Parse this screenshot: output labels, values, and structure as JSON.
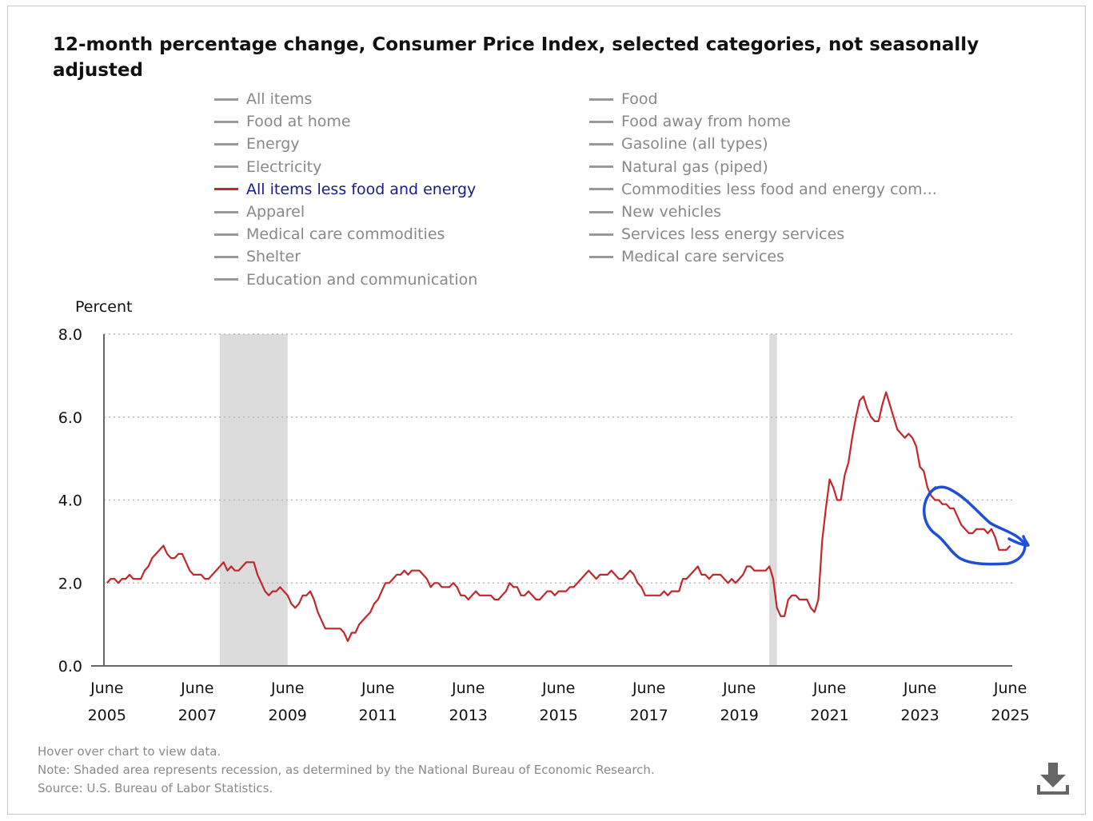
{
  "title": "12-month percentage change, Consumer Price Index, selected categories, not seasonally adjusted",
  "legend": {
    "left": [
      "All items",
      "Food at home",
      "Energy",
      "Electricity",
      "All items less food and energy",
      "Apparel",
      "Medical care commodities",
      "Shelter",
      "Education and communication"
    ],
    "right": [
      "Food",
      "Food away from home",
      "Gasoline (all types)",
      "Natural gas (piped)",
      "Commodities less food and energy com...",
      "New vehicles",
      "Services less energy services",
      "Medical care services"
    ],
    "active": "All items less food and energy"
  },
  "colors": {
    "series": "#c4262b",
    "annotation": "#1f4fd6",
    "recession": "#dcdcdc",
    "inactive_legend": "#999999",
    "active_legend_text": "#1a1a8f"
  },
  "notes": {
    "hover": "Hover over chart to view data.",
    "note": "Note: Shaded area represents recession, as determined by the National Bureau of Economic Research.",
    "source": "Source: U.S. Bureau of Labor Statistics."
  },
  "download_icon": "download-icon",
  "chart_data": {
    "type": "line",
    "title": "12-month percentage change, Consumer Price Index, selected categories, not seasonally adjusted",
    "ylabel": "Percent",
    "xlabel": "",
    "ylim": [
      0,
      8
    ],
    "yticks": [
      "0.0",
      "2.0",
      "4.0",
      "6.0",
      "8.0"
    ],
    "ytick_values": [
      0,
      2,
      4,
      6,
      8
    ],
    "xticks": [
      {
        "month": "June",
        "year": "2005",
        "t": 2005.417
      },
      {
        "month": "June",
        "year": "2007",
        "t": 2007.417
      },
      {
        "month": "June",
        "year": "2009",
        "t": 2009.417
      },
      {
        "month": "June",
        "year": "2011",
        "t": 2011.417
      },
      {
        "month": "June",
        "year": "2013",
        "t": 2013.417
      },
      {
        "month": "June",
        "year": "2015",
        "t": 2015.417
      },
      {
        "month": "June",
        "year": "2017",
        "t": 2017.417
      },
      {
        "month": "June",
        "year": "2019",
        "t": 2019.417
      },
      {
        "month": "June",
        "year": "2021",
        "t": 2021.417
      },
      {
        "month": "June",
        "year": "2023",
        "t": 2023.417
      },
      {
        "month": "June",
        "year": "2025",
        "t": 2025.417
      }
    ],
    "xlim": [
      2005.35,
      2025.46
    ],
    "grid": true,
    "recessions": [
      {
        "start": 2007.917,
        "end": 2009.417
      },
      {
        "start": 2020.083,
        "end": 2020.25
      }
    ],
    "series": [
      {
        "name": "All items less food and energy",
        "start": 2005.417,
        "step": 0.08333,
        "values": [
          2.0,
          2.1,
          2.1,
          2.0,
          2.1,
          2.1,
          2.2,
          2.1,
          2.1,
          2.1,
          2.3,
          2.4,
          2.6,
          2.7,
          2.8,
          2.9,
          2.7,
          2.6,
          2.6,
          2.7,
          2.7,
          2.5,
          2.3,
          2.2,
          2.2,
          2.2,
          2.1,
          2.1,
          2.2,
          2.3,
          2.4,
          2.5,
          2.3,
          2.4,
          2.3,
          2.3,
          2.4,
          2.5,
          2.5,
          2.5,
          2.2,
          2.0,
          1.8,
          1.7,
          1.8,
          1.8,
          1.9,
          1.8,
          1.7,
          1.5,
          1.4,
          1.5,
          1.7,
          1.7,
          1.8,
          1.6,
          1.3,
          1.1,
          0.9,
          0.9,
          0.9,
          0.9,
          0.9,
          0.8,
          0.6,
          0.8,
          0.8,
          1.0,
          1.1,
          1.2,
          1.3,
          1.5,
          1.6,
          1.8,
          2.0,
          2.0,
          2.1,
          2.2,
          2.2,
          2.3,
          2.2,
          2.3,
          2.3,
          2.3,
          2.2,
          2.1,
          1.9,
          2.0,
          2.0,
          1.9,
          1.9,
          1.9,
          2.0,
          1.9,
          1.7,
          1.7,
          1.6,
          1.7,
          1.8,
          1.7,
          1.7,
          1.7,
          1.7,
          1.6,
          1.6,
          1.7,
          1.8,
          2.0,
          1.9,
          1.9,
          1.7,
          1.7,
          1.8,
          1.7,
          1.6,
          1.6,
          1.7,
          1.8,
          1.8,
          1.7,
          1.8,
          1.8,
          1.8,
          1.9,
          1.9,
          2.0,
          2.1,
          2.2,
          2.3,
          2.2,
          2.1,
          2.2,
          2.2,
          2.2,
          2.3,
          2.2,
          2.1,
          2.1,
          2.2,
          2.3,
          2.2,
          2.0,
          1.9,
          1.7,
          1.7,
          1.7,
          1.7,
          1.7,
          1.8,
          1.7,
          1.8,
          1.8,
          1.8,
          2.1,
          2.1,
          2.2,
          2.3,
          2.4,
          2.2,
          2.2,
          2.1,
          2.2,
          2.2,
          2.2,
          2.1,
          2.0,
          2.1,
          2.0,
          2.1,
          2.2,
          2.4,
          2.4,
          2.3,
          2.3,
          2.3,
          2.3,
          2.4,
          2.1,
          1.4,
          1.2,
          1.2,
          1.6,
          1.7,
          1.7,
          1.6,
          1.6,
          1.6,
          1.4,
          1.3,
          1.6,
          3.0,
          3.8,
          4.5,
          4.3,
          4.0,
          4.0,
          4.6,
          4.9,
          5.5,
          6.0,
          6.4,
          6.5,
          6.2,
          6.0,
          5.9,
          5.9,
          6.3,
          6.6,
          6.3,
          6.0,
          5.7,
          5.6,
          5.5,
          5.6,
          5.5,
          5.3,
          4.8,
          4.7,
          4.3,
          4.1,
          4.0,
          4.0,
          3.9,
          3.9,
          3.8,
          3.8,
          3.6,
          3.4,
          3.3,
          3.2,
          3.2,
          3.3,
          3.3,
          3.3,
          3.2,
          3.3,
          3.1,
          2.8,
          2.8,
          2.8,
          2.9
        ]
      }
    ],
    "annotation": "blue hand-drawn circle around recent decline"
  }
}
